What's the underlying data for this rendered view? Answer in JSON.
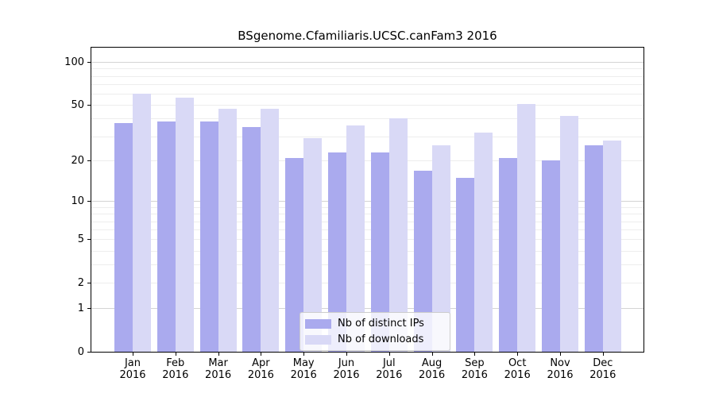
{
  "chart_data": {
    "type": "bar",
    "title": "BSgenome.Cfamiliaris.UCSC.canFam3 2016",
    "categories": [
      "Jan",
      "Feb",
      "Mar",
      "Apr",
      "May",
      "Jun",
      "Jul",
      "Aug",
      "Sep",
      "Oct",
      "Nov",
      "Dec"
    ],
    "year_label": "2016",
    "series": [
      {
        "name": "Nb of distinct IPs",
        "color": "#aaaaee",
        "values": [
          37,
          38,
          38,
          35,
          21,
          23,
          23,
          17,
          15,
          21,
          20,
          26
        ]
      },
      {
        "name": "Nb of downloads",
        "color": "#d9d9f6",
        "values": [
          60,
          56,
          47,
          47,
          29,
          36,
          40,
          26,
          32,
          51,
          42,
          28
        ]
      }
    ],
    "yscale": "log10(1+x)",
    "ylim": [
      0,
      129
    ],
    "yticks": [
      100,
      50,
      20,
      10,
      5,
      2,
      1,
      0
    ],
    "grid": {
      "on": true,
      "minor_lines": [
        2,
        3,
        4,
        5,
        6,
        7,
        8,
        9,
        20,
        30,
        40,
        50,
        60,
        70,
        80,
        90
      ],
      "major_lines": [
        1,
        10,
        100
      ]
    },
    "legend_position": "lower center"
  }
}
